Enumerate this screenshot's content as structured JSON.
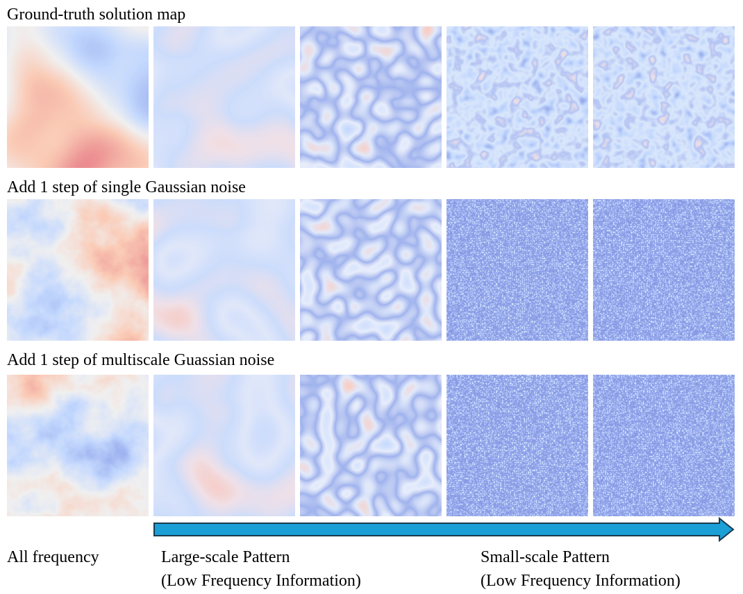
{
  "rows": [
    {
      "label": "Ground-truth solution map"
    },
    {
      "label": "Add 1 step of single Gaussian noise"
    },
    {
      "label": "Add 1 step of multiscale Guassian noise"
    }
  ],
  "bottom_labels": {
    "all": "All frequency",
    "large": {
      "line1": "Large-scale Pattern",
      "line2": "(Low Frequency Information)"
    },
    "small": {
      "line1": "Small-scale Pattern",
      "line2": "(Low Frequency Information)"
    }
  }
}
